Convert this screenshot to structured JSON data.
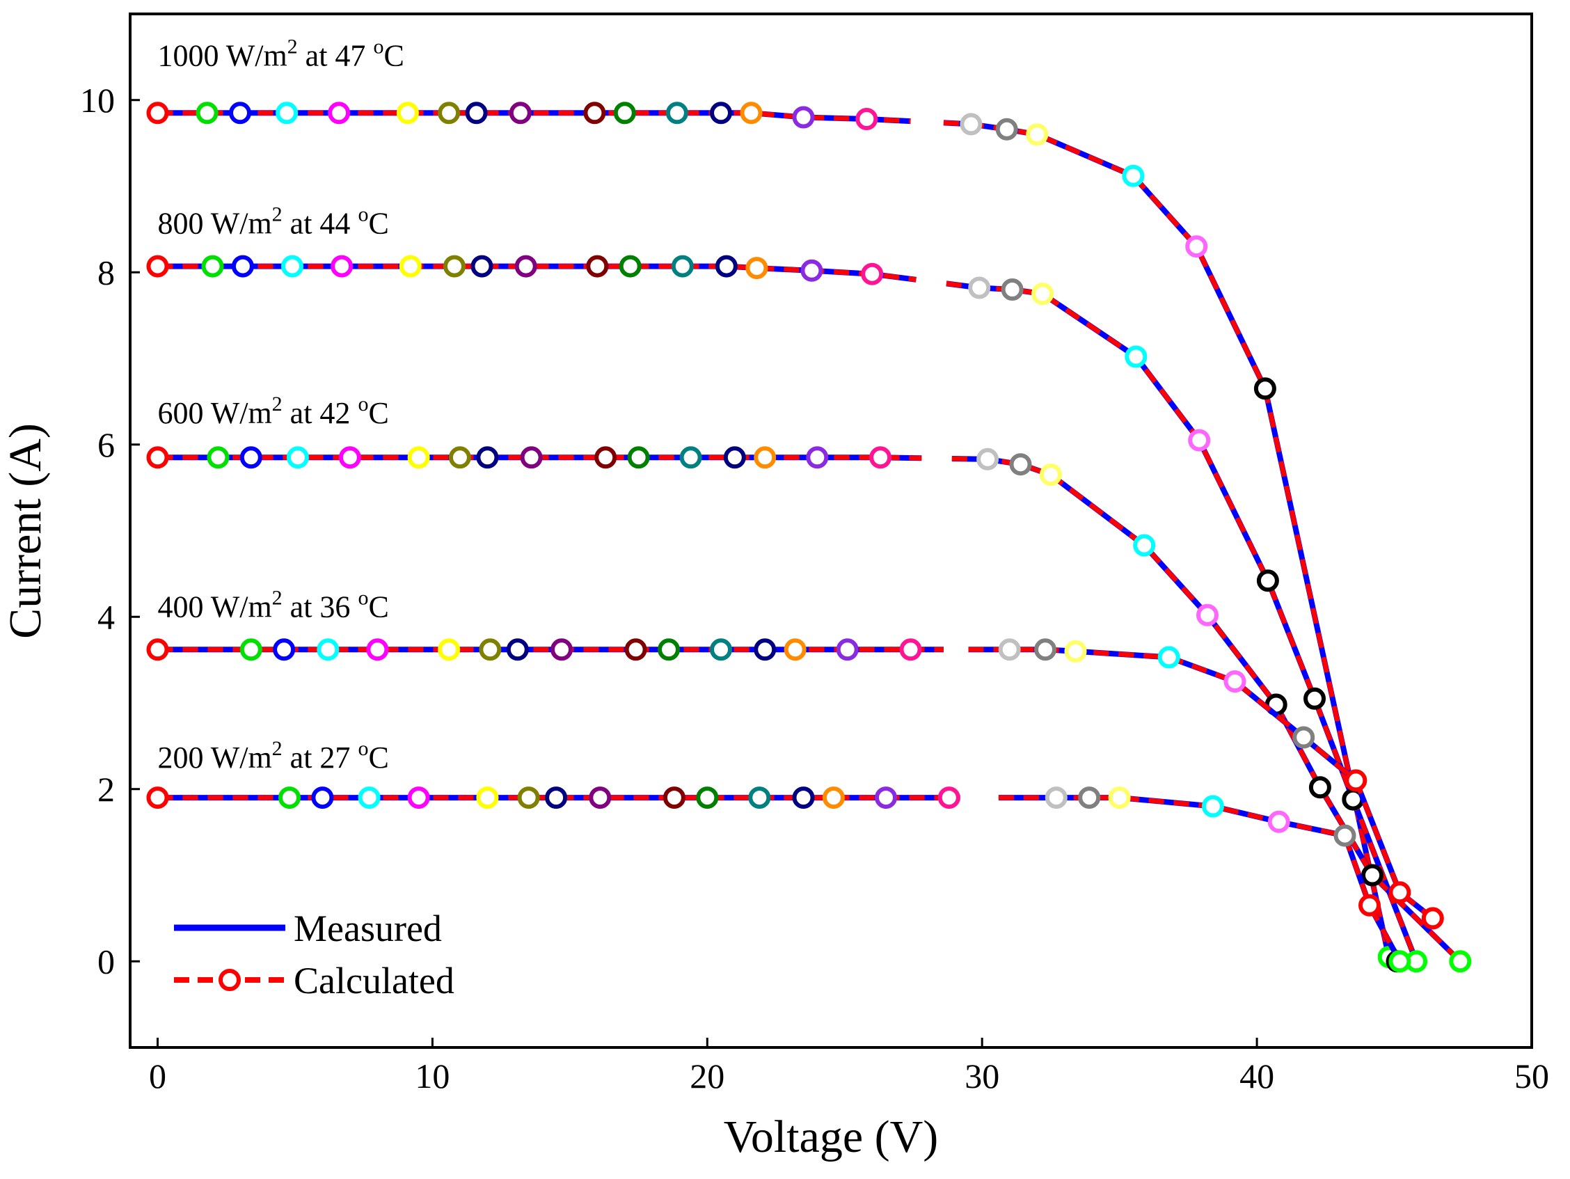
{
  "chart_data": {
    "type": "line",
    "title": "",
    "xlabel": "Voltage (V)",
    "ylabel": "Current (A)",
    "xlim": [
      -1,
      50
    ],
    "ylim": [
      -1,
      11
    ],
    "xticks": [
      0,
      10,
      20,
      30,
      40,
      50
    ],
    "yticks": [
      0,
      2,
      4,
      6,
      8,
      10
    ],
    "grid": false,
    "legend_position": "bottom-left",
    "legend": [
      {
        "label": "Measured",
        "color": "#0000ff",
        "style": "solid"
      },
      {
        "label": "Calculated",
        "color": "#ff0000",
        "style": "dashed",
        "marker": "open-circle"
      }
    ],
    "marker_colors": [
      "#ff0000",
      "#00e000",
      "#0000ff",
      "#00ffff",
      "#ff00ff",
      "#ffff00",
      "#808000",
      "#000080",
      "#800080",
      "#800000",
      "#008000",
      "#008080",
      "#000080",
      "#ff8c00",
      "#8a2be2",
      "#ff1493",
      "#c0c0c0",
      "#808080",
      "#ffff66",
      "#00ffff",
      "#ff66ff",
      "#000000",
      "#000000",
      "#00ff00"
    ],
    "series": [
      {
        "name": "1000 W/m2 at 47 °C",
        "label_main": "1000 W/m",
        "label_sup": "2",
        "label_mid": " at 47 ",
        "label_deg": "o",
        "label_end": "C",
        "label_anchor_xy": [
          0,
          10.4
        ],
        "gap": [
          27.4,
          28.6
        ],
        "x": [
          0,
          1.8,
          3.0,
          4.7,
          6.6,
          9.1,
          10.6,
          11.6,
          13.2,
          15.9,
          17.0,
          18.9,
          20.5,
          21.6,
          23.5,
          25.8,
          29.6,
          30.9,
          32.0,
          35.5,
          37.8,
          40.3,
          44.8,
          45.1
        ],
        "y": [
          9.85,
          9.85,
          9.85,
          9.85,
          9.85,
          9.85,
          9.85,
          9.85,
          9.85,
          9.85,
          9.85,
          9.85,
          9.85,
          9.85,
          9.8,
          9.78,
          9.72,
          9.66,
          9.6,
          9.12,
          8.3,
          6.65,
          0.05,
          0.0
        ],
        "marker_idx": [
          0,
          1,
          2,
          3,
          4,
          5,
          6,
          7,
          8,
          9,
          10,
          11,
          12,
          13,
          14,
          15,
          16,
          17,
          18,
          19,
          20,
          21,
          23,
          22
        ]
      },
      {
        "name": "800 W/m2 at 44 °C",
        "label_main": "800 W/m",
        "label_sup": "2",
        "label_mid": " at 44 ",
        "label_deg": "o",
        "label_end": "C",
        "label_anchor_xy": [
          0,
          8.45
        ],
        "gap": [
          27.6,
          28.7
        ],
        "x": [
          0,
          2.0,
          3.1,
          4.9,
          6.7,
          9.2,
          10.8,
          11.8,
          13.4,
          16.0,
          17.2,
          19.1,
          20.7,
          21.8,
          23.8,
          26.0,
          29.9,
          31.1,
          32.2,
          35.6,
          37.9,
          40.4,
          42.1,
          43.5,
          45.8
        ],
        "y": [
          8.07,
          8.07,
          8.07,
          8.07,
          8.07,
          8.07,
          8.07,
          8.07,
          8.07,
          8.07,
          8.07,
          8.07,
          8.07,
          8.05,
          8.02,
          7.98,
          7.82,
          7.8,
          7.75,
          7.02,
          6.05,
          4.42,
          3.05,
          1.88,
          0.0
        ],
        "marker_idx": [
          0,
          1,
          2,
          3,
          4,
          5,
          6,
          7,
          8,
          9,
          10,
          11,
          12,
          13,
          14,
          15,
          16,
          17,
          18,
          19,
          20,
          21,
          22,
          22,
          23
        ]
      },
      {
        "name": "600 W/m2 at 42 °C",
        "label_main": "600 W/m",
        "label_sup": "2",
        "label_mid": " at 42 ",
        "label_deg": "o",
        "label_end": "C",
        "label_anchor_xy": [
          0,
          6.25
        ],
        "gap": [
          27.8,
          28.9
        ],
        "x": [
          0,
          2.2,
          3.4,
          5.1,
          7.0,
          9.5,
          11.0,
          12.0,
          13.6,
          16.3,
          17.5,
          19.4,
          21.0,
          22.1,
          24.0,
          26.3,
          30.2,
          31.4,
          32.5,
          35.9,
          38.2,
          40.7,
          42.3,
          44.2,
          47.4
        ],
        "y": [
          5.85,
          5.85,
          5.85,
          5.85,
          5.85,
          5.85,
          5.85,
          5.85,
          5.85,
          5.85,
          5.85,
          5.85,
          5.85,
          5.85,
          5.85,
          5.85,
          5.83,
          5.77,
          5.65,
          4.83,
          4.02,
          2.98,
          2.02,
          1.0,
          0.0
        ],
        "marker_idx": [
          0,
          1,
          2,
          3,
          4,
          5,
          6,
          7,
          8,
          9,
          10,
          11,
          12,
          13,
          14,
          15,
          16,
          17,
          18,
          19,
          20,
          21,
          21,
          21,
          23
        ]
      },
      {
        "name": "400 W/m2 at 36 °C",
        "label_main": "400 W/m",
        "label_sup": "2",
        "label_mid": " at 36 ",
        "label_deg": "o",
        "label_end": "C",
        "label_anchor_xy": [
          0,
          4.0
        ],
        "gap": [
          28.6,
          29.5
        ],
        "x": [
          0,
          3.4,
          4.6,
          6.2,
          8.0,
          10.6,
          12.1,
          13.1,
          14.7,
          17.4,
          18.6,
          20.5,
          22.1,
          23.2,
          25.1,
          27.4,
          31.0,
          32.3,
          33.4,
          36.8,
          39.2,
          41.7,
          43.6,
          45.2,
          46.4
        ],
        "y": [
          3.62,
          3.62,
          3.62,
          3.62,
          3.62,
          3.62,
          3.62,
          3.62,
          3.62,
          3.62,
          3.62,
          3.62,
          3.62,
          3.62,
          3.62,
          3.62,
          3.62,
          3.62,
          3.6,
          3.53,
          3.25,
          2.6,
          2.1,
          0.8,
          0.5
        ],
        "marker_idx": [
          0,
          1,
          2,
          3,
          4,
          5,
          6,
          7,
          8,
          9,
          10,
          11,
          12,
          13,
          14,
          15,
          16,
          17,
          18,
          19,
          20,
          17,
          0,
          0,
          0
        ]
      },
      {
        "name": "200 W/m2 at 27 °C",
        "label_main": "200 W/m",
        "label_sup": "2",
        "label_mid": " at 27 ",
        "label_deg": "o",
        "label_end": "C",
        "label_anchor_xy": [
          0,
          2.25
        ],
        "gap": [
          29.2,
          30.6
        ],
        "x": [
          0,
          4.8,
          6.0,
          7.7,
          9.5,
          12.0,
          13.5,
          14.5,
          16.1,
          18.8,
          20.0,
          21.9,
          23.5,
          24.6,
          26.5,
          28.8,
          32.7,
          33.9,
          35.0,
          38.4,
          40.8,
          43.2,
          44.1,
          45.2
        ],
        "y": [
          1.9,
          1.9,
          1.9,
          1.9,
          1.9,
          1.9,
          1.9,
          1.9,
          1.9,
          1.9,
          1.9,
          1.9,
          1.9,
          1.9,
          1.9,
          1.9,
          1.9,
          1.9,
          1.9,
          1.8,
          1.62,
          1.46,
          0.65,
          0.0
        ],
        "marker_idx": [
          0,
          1,
          2,
          3,
          4,
          5,
          6,
          7,
          8,
          9,
          10,
          11,
          12,
          13,
          14,
          15,
          16,
          17,
          18,
          19,
          20,
          17,
          0,
          23
        ]
      }
    ]
  }
}
